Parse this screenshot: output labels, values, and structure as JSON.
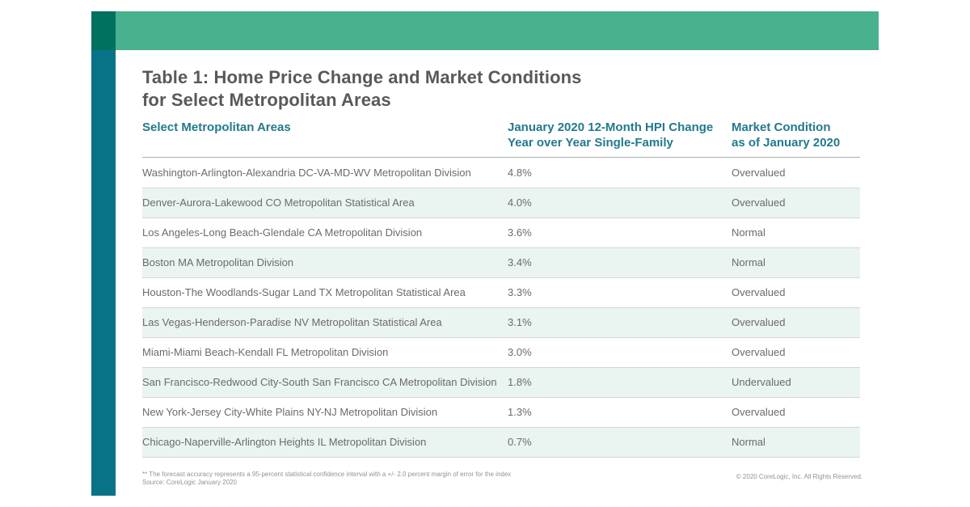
{
  "page": {
    "title_line1": "Table 1: Home Price Change and Market Conditions",
    "title_line2": "for Select Metropolitan Areas"
  },
  "colors": {
    "band_green": "#48B18D",
    "corner_dark_green": "#00705F",
    "stripe_teal": "#087287",
    "header_teal": "#23798E",
    "row_shade": "#EAF4F0",
    "title_gray": "#58595B",
    "body_gray": "#6A6B6D"
  },
  "table": {
    "columns": [
      {
        "label": "Select Metropolitan Areas"
      },
      {
        "label": "January 2020 12-Month HPI Change\nYear over Year Single-Family"
      },
      {
        "label": "Market Condition\nas of January 2020"
      }
    ],
    "rows": [
      {
        "area": "Washington-Arlington-Alexandria DC-VA-MD-WV Metropolitan Division",
        "hpi_change": "4.8%",
        "condition": "Overvalued"
      },
      {
        "area": "Denver-Aurora-Lakewood CO Metropolitan Statistical Area",
        "hpi_change": "4.0%",
        "condition": "Overvalued"
      },
      {
        "area": "Los Angeles-Long Beach-Glendale CA Metropolitan Division",
        "hpi_change": "3.6%",
        "condition": "Normal"
      },
      {
        "area": "Boston MA Metropolitan Division",
        "hpi_change": "3.4%",
        "condition": "Normal"
      },
      {
        "area": "Houston-The Woodlands-Sugar Land TX Metropolitan Statistical Area",
        "hpi_change": "3.3%",
        "condition": "Overvalued"
      },
      {
        "area": "Las Vegas-Henderson-Paradise NV Metropolitan Statistical Area",
        "hpi_change": "3.1%",
        "condition": "Overvalued"
      },
      {
        "area": "Miami-Miami Beach-Kendall FL Metropolitan Division",
        "hpi_change": "3.0%",
        "condition": "Overvalued"
      },
      {
        "area": "San Francisco-Redwood City-South San Francisco CA Metropolitan Division",
        "hpi_change": "1.8%",
        "condition": "Undervalued"
      },
      {
        "area": "New York-Jersey City-White Plains NY-NJ Metropolitan Division",
        "hpi_change": "1.3%",
        "condition": "Overvalued"
      },
      {
        "area": "Chicago-Naperville-Arlington Heights IL Metropolitan Division",
        "hpi_change": "0.7%",
        "condition": "Normal"
      }
    ]
  },
  "footer": {
    "note_line1": "** The forecast accuracy represents a 95-percent statistical confidence interval with a +/- 2.0 percent margin of error for the index",
    "note_line2": "Source: CoreLogic January 2020",
    "copyright": "© 2020 CoreLogic, Inc. All Rights Reserved."
  }
}
